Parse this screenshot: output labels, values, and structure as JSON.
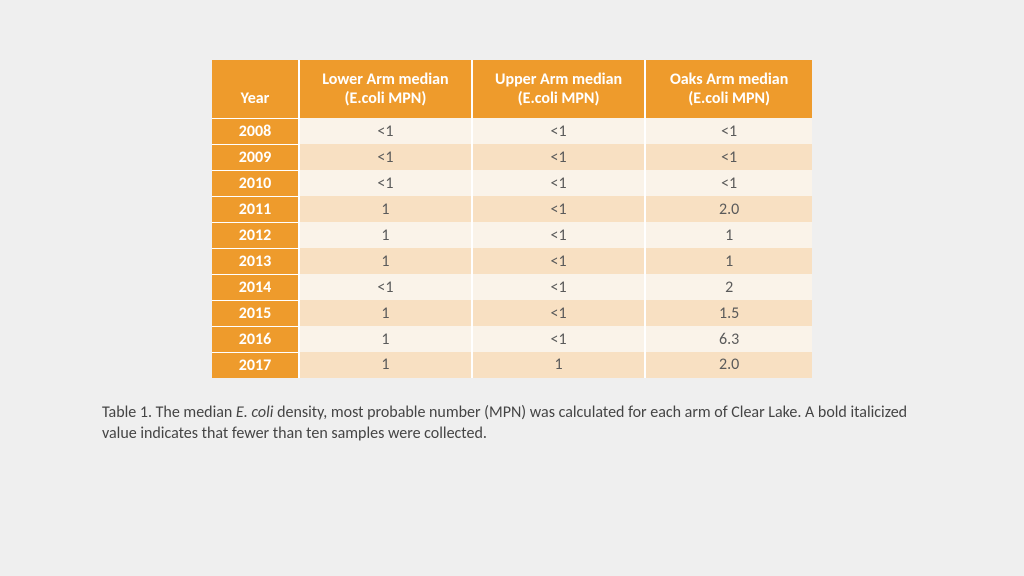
{
  "background_color": "#efefef",
  "table": {
    "header_bg": "#ee9b2c",
    "header_fg": "#ffffff",
    "row_alt_a_bg": "#faf3e9",
    "row_alt_b_bg": "#f8e0c2",
    "year_header": "Year",
    "columns": [
      "Lower Arm median (E.coli MPN)",
      "Upper Arm median (E.coli MPN)",
      "Oaks Arm median (E.coli MPN)"
    ],
    "rows": [
      {
        "year": "2008",
        "cells": [
          "<1",
          "<1",
          "<1"
        ]
      },
      {
        "year": "2009",
        "cells": [
          "<1",
          "<1",
          "<1"
        ]
      },
      {
        "year": "2010",
        "cells": [
          "<1",
          "<1",
          "<1"
        ]
      },
      {
        "year": "2011",
        "cells": [
          "1",
          "<1",
          "2.0"
        ]
      },
      {
        "year": "2012",
        "cells": [
          "1",
          "<1",
          "1"
        ]
      },
      {
        "year": "2013",
        "cells": [
          "1",
          "<1",
          "1"
        ]
      },
      {
        "year": "2014",
        "cells": [
          "<1",
          "<1",
          "2"
        ]
      },
      {
        "year": "2015",
        "cells": [
          "1",
          "<1",
          "1.5"
        ]
      },
      {
        "year": "2016",
        "cells": [
          "1",
          "<1",
          "6.3"
        ]
      },
      {
        "year": "2017",
        "cells": [
          "1",
          "1",
          "2.0"
        ]
      }
    ]
  },
  "caption": {
    "prefix": "Table 1. The median ",
    "italic": "E. coli",
    "suffix": " density, most probable number (MPN) was calculated for each arm of Clear Lake.  A bold italicized value indicates that fewer than ten samples were collected."
  }
}
